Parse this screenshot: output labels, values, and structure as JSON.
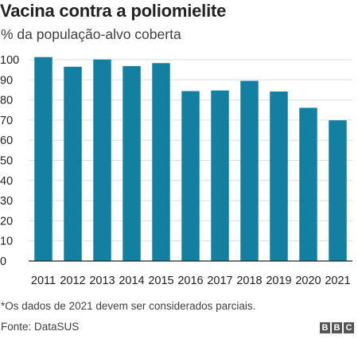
{
  "title": "Vacina contra a poliomielite",
  "subtitle": "% da população-alvo coberta",
  "footnote": "*Os dados de 2021 devem ser considerados parciais.",
  "source": "Fonte: DataSUS",
  "logo": {
    "letters": [
      "B",
      "B",
      "C"
    ],
    "icon": "bbc-logo"
  },
  "colors": {
    "bar": "#1380a1",
    "axis": "#222222",
    "grid": "#dddddd"
  },
  "chart_data": {
    "type": "bar",
    "title": "Vacina contra a poliomielite",
    "subtitle": "% da população-alvo coberta",
    "xlabel": "",
    "ylabel": "",
    "categories": [
      "2011",
      "2012",
      "2013",
      "2014",
      "2015",
      "2016",
      "2017",
      "2018",
      "2019",
      "2020",
      "2021"
    ],
    "values": [
      101.3,
      96.5,
      100.1,
      96.8,
      98.3,
      84.4,
      84.7,
      89.5,
      84.2,
      76.1,
      69.9
    ],
    "ylim": [
      0,
      100
    ],
    "yticks": [
      0,
      10,
      20,
      30,
      40,
      50,
      60,
      70,
      80,
      90,
      100
    ],
    "grid": true,
    "legend": "none"
  }
}
